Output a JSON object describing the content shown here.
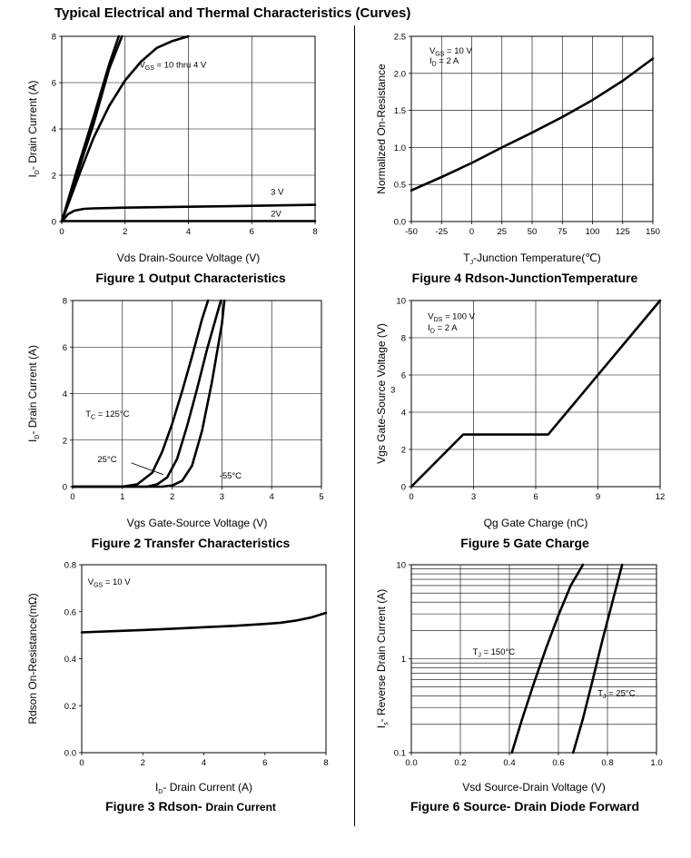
{
  "page_title": "Typical Electrical and Thermal Characteristics (Curves)",
  "chart_data": [
    {
      "type": "line",
      "figure_title": "Figure 1 Output Characteristics",
      "title_suffix": "",
      "xlabel": "Vds Drain-Source Voltage (V)",
      "ylabel_main": "I",
      "ylabel_sub": "D",
      "ylabel_rest": "- Drain Current (A)",
      "xlim": [
        0,
        8
      ],
      "ylim": [
        0,
        8
      ],
      "xticks": [
        0,
        2,
        4,
        6,
        8
      ],
      "yticks": [
        0,
        2,
        4,
        6,
        8
      ],
      "xtick_labels": [
        "0",
        "2",
        "4",
        "6",
        "8"
      ],
      "ytick_labels": [
        "0",
        "2",
        "4",
        "6",
        "8"
      ],
      "grid": true,
      "series": [
        {
          "name": "VGS = 10 thru 4 V",
          "x": [
            0,
            0.5,
            1,
            1.5,
            1.8
          ],
          "y": [
            0,
            2.3,
            4.5,
            6.8,
            8.0
          ]
        },
        {
          "name": "",
          "x": [
            0,
            0.5,
            1,
            1.5,
            1.9
          ],
          "y": [
            0,
            2.1,
            4.2,
            6.6,
            8.0
          ]
        },
        {
          "name": "",
          "x": [
            0,
            0.6,
            1,
            1.5,
            2,
            2.5,
            3,
            3.5,
            4
          ],
          "y": [
            0,
            2.2,
            3.6,
            5.0,
            6.1,
            6.9,
            7.5,
            7.8,
            8.0
          ]
        },
        {
          "name": "3 V",
          "x": [
            0,
            0.2,
            0.4,
            0.7,
            1,
            2,
            4,
            6,
            8
          ],
          "y": [
            0,
            0.32,
            0.47,
            0.55,
            0.57,
            0.6,
            0.64,
            0.68,
            0.72
          ]
        },
        {
          "name": "2V",
          "x": [
            0,
            8
          ],
          "y": [
            0.02,
            0.02
          ]
        }
      ],
      "annotations": [
        {
          "pre": "V",
          "sub": "GS",
          "post": " = 10 thru 4 V",
          "x": 2.45,
          "y": 6.65
        },
        {
          "pre": "3 V",
          "sub": "",
          "post": "",
          "x": 6.6,
          "y": 1.15
        },
        {
          "pre": "2V",
          "sub": "",
          "post": "",
          "x": 6.6,
          "y": 0.22
        }
      ]
    },
    {
      "type": "line",
      "figure_title": "Figure 2 Transfer Characteristics",
      "title_suffix": "",
      "xlabel": "Vgs Gate-Source Voltage (V)",
      "ylabel_main": "I",
      "ylabel_sub": "D",
      "ylabel_rest": "- Drain Current (A)",
      "xlim": [
        0,
        5
      ],
      "ylim": [
        0,
        8
      ],
      "xticks": [
        0,
        1,
        2,
        3,
        4,
        5
      ],
      "yticks": [
        0,
        2,
        4,
        6,
        8
      ],
      "xtick_labels": [
        "0",
        "1",
        "2",
        "3",
        "4",
        "5"
      ],
      "ytick_labels": [
        "0",
        "2",
        "4",
        "6",
        "8"
      ],
      "grid": true,
      "series": [
        {
          "name": "TC = 125°C",
          "x": [
            0,
            1.0,
            1.3,
            1.6,
            1.8,
            2.0,
            2.2,
            2.4,
            2.6,
            2.72
          ],
          "y": [
            0,
            0,
            0.1,
            0.6,
            1.5,
            2.7,
            4.1,
            5.6,
            7.2,
            8.0
          ]
        },
        {
          "name": "25°C",
          "x": [
            0,
            1.5,
            1.7,
            1.9,
            2.1,
            2.3,
            2.5,
            2.7,
            2.9,
            2.98
          ],
          "y": [
            0,
            0,
            0.1,
            0.4,
            1.2,
            2.6,
            4.2,
            5.9,
            7.4,
            8.0
          ]
        },
        {
          "name": "-55°C",
          "x": [
            0,
            1.8,
            2.0,
            2.2,
            2.4,
            2.6,
            2.8,
            3.0,
            3.05
          ],
          "y": [
            0,
            0,
            0.05,
            0.25,
            0.9,
            2.4,
            4.5,
            7.0,
            8.0
          ]
        }
      ],
      "annotations": [
        {
          "pre": "T",
          "sub": "C",
          "post": " = 125°C",
          "x": 0.26,
          "y": 3.0
        },
        {
          "pre": "25°C",
          "sub": "",
          "post": "",
          "x": 0.5,
          "y": 1.05
        },
        {
          "pre": "-55°C",
          "sub": "",
          "post": "",
          "x": 2.95,
          "y": 0.35
        }
      ],
      "pointer": {
        "x1": 1.18,
        "y1": 1.02,
        "x2": 1.82,
        "y2": 0.52
      }
    },
    {
      "type": "line",
      "figure_title": "Figure 3 Rdson- ",
      "title_suffix": "Drain Current",
      "xlabel_main": "I",
      "xlabel_sub": "D",
      "xlabel_rest": "- Drain Current (A)",
      "ylabel": "Rdson On-Resistance(mΩ)",
      "xlim": [
        0,
        8
      ],
      "ylim": [
        0,
        0.8
      ],
      "xticks": [
        0,
        2,
        4,
        6,
        8
      ],
      "yticks": [
        0,
        0.2,
        0.4,
        0.6,
        0.8
      ],
      "xtick_labels": [
        "0",
        "2",
        "4",
        "6",
        "8"
      ],
      "ytick_labels": [
        "0.0",
        "0.2",
        "0.4",
        "0.6",
        "0.8"
      ],
      "grid": false,
      "series": [
        {
          "name": "",
          "x": [
            0,
            1,
            2,
            3,
            4,
            5,
            6,
            6.5,
            7,
            7.5,
            8
          ],
          "y": [
            0.512,
            0.517,
            0.522,
            0.528,
            0.534,
            0.54,
            0.548,
            0.553,
            0.562,
            0.575,
            0.595
          ]
        }
      ],
      "annotations": [
        {
          "pre": "V",
          "sub": "GS",
          "post": " = 10 V",
          "x": 0.2,
          "y": 0.715
        }
      ]
    },
    {
      "type": "line",
      "figure_title": "Figure 4 Rdson-JunctionTemperature",
      "title_suffix": "",
      "xlabel_main": "T",
      "xlabel_sub": "J",
      "xlabel_rest": "-Junction Temperature(℃)",
      "ylabel": "Normalized On-Resistance",
      "xlim": [
        -50,
        150
      ],
      "ylim": [
        0,
        2.5
      ],
      "xticks": [
        -50,
        -25,
        0,
        25,
        50,
        75,
        100,
        125,
        150
      ],
      "yticks": [
        0,
        0.5,
        1.0,
        1.5,
        2.0,
        2.5
      ],
      "xtick_labels": [
        "-50",
        "-25",
        "0",
        "25",
        "50",
        "75",
        "100",
        "125",
        "150"
      ],
      "ytick_labels": [
        "0.0",
        "0.5",
        "1.0",
        "1.5",
        "2.0",
        "2.5"
      ],
      "grid": true,
      "series": [
        {
          "name": "",
          "x": [
            -50,
            -25,
            0,
            25,
            50,
            75,
            100,
            125,
            150
          ],
          "y": [
            0.42,
            0.6,
            0.79,
            1.0,
            1.2,
            1.41,
            1.64,
            1.9,
            2.2
          ]
        }
      ],
      "annotations": [
        {
          "pre": "V",
          "sub": "GS",
          "post": " = 10 V",
          "x": -35,
          "y": 2.27
        },
        {
          "pre": "I",
          "sub": "D",
          "post": " = 2 A",
          "x": -35,
          "y": 2.13
        }
      ]
    },
    {
      "type": "line",
      "figure_title": "Figure 5 Gate Charge",
      "title_suffix": "",
      "xlabel": "Qg Gate Charge (nC)",
      "ylabel": "Vgs Gate-Source Voltage (V)",
      "xlim": [
        0,
        12
      ],
      "ylim": [
        0,
        10
      ],
      "xticks": [
        0,
        3,
        6,
        9,
        12
      ],
      "yticks": [
        0,
        2,
        4,
        6,
        8,
        10
      ],
      "xtick_labels": [
        "0",
        "3",
        "6",
        "9",
        "12"
      ],
      "ytick_labels": [
        "0",
        "2",
        "4",
        "6",
        "8",
        "10"
      ],
      "grid": true,
      "series": [
        {
          "name": "",
          "x": [
            0,
            2.5,
            6.6,
            12
          ],
          "y": [
            0,
            2.8,
            2.8,
            10
          ]
        }
      ],
      "annotations": [
        {
          "pre": "V",
          "sub": "DS",
          "post": " = 100 V",
          "x": 0.8,
          "y": 9.0
        },
        {
          "pre": "I",
          "sub": "D",
          "post": " = 2 A",
          "x": 0.8,
          "y": 8.4
        },
        {
          "pre": "3",
          "sub": "",
          "post": "",
          "x": -1.0,
          "y": 5.05
        }
      ]
    },
    {
      "type": "line",
      "figure_title": "Figure 6 Source- Drain Diode Forward",
      "title_suffix": "",
      "xlabel": "Vsd Source-Drain Voltage (V)",
      "ylabel_main": "I",
      "ylabel_sub": "s",
      "ylabel_rest": "- Reverse Drain Current (A)",
      "xlim": [
        0,
        1.0
      ],
      "ylim": [
        0.1,
        10
      ],
      "yscale": "log",
      "xticks": [
        0,
        0.2,
        0.4,
        0.6,
        0.8,
        1.0
      ],
      "yticks": [
        0.1,
        1,
        10
      ],
      "xtick_labels": [
        "0.0",
        "0.2",
        "0.4",
        "0.6",
        "0.8",
        "1.0"
      ],
      "ytick_labels": [
        "0.1",
        "1",
        "10"
      ],
      "grid": true,
      "series": [
        {
          "name": "TJ = 150°C",
          "x": [
            0.41,
            0.45,
            0.5,
            0.55,
            0.6,
            0.65,
            0.7
          ],
          "y": [
            0.1,
            0.22,
            0.55,
            1.3,
            2.9,
            6.0,
            10
          ]
        },
        {
          "name": "TJ = 25°C",
          "x": [
            0.66,
            0.7,
            0.74,
            0.78,
            0.82,
            0.86
          ],
          "y": [
            0.1,
            0.23,
            0.6,
            1.6,
            4.0,
            10
          ]
        }
      ],
      "annotations": [
        {
          "pre": "T",
          "sub": "J",
          "post": " = 150°C",
          "x": 0.25,
          "y": 1.1
        },
        {
          "pre": "T",
          "sub": "J",
          "post": " = 25°C",
          "x": 0.76,
          "y": 0.4
        }
      ]
    }
  ]
}
